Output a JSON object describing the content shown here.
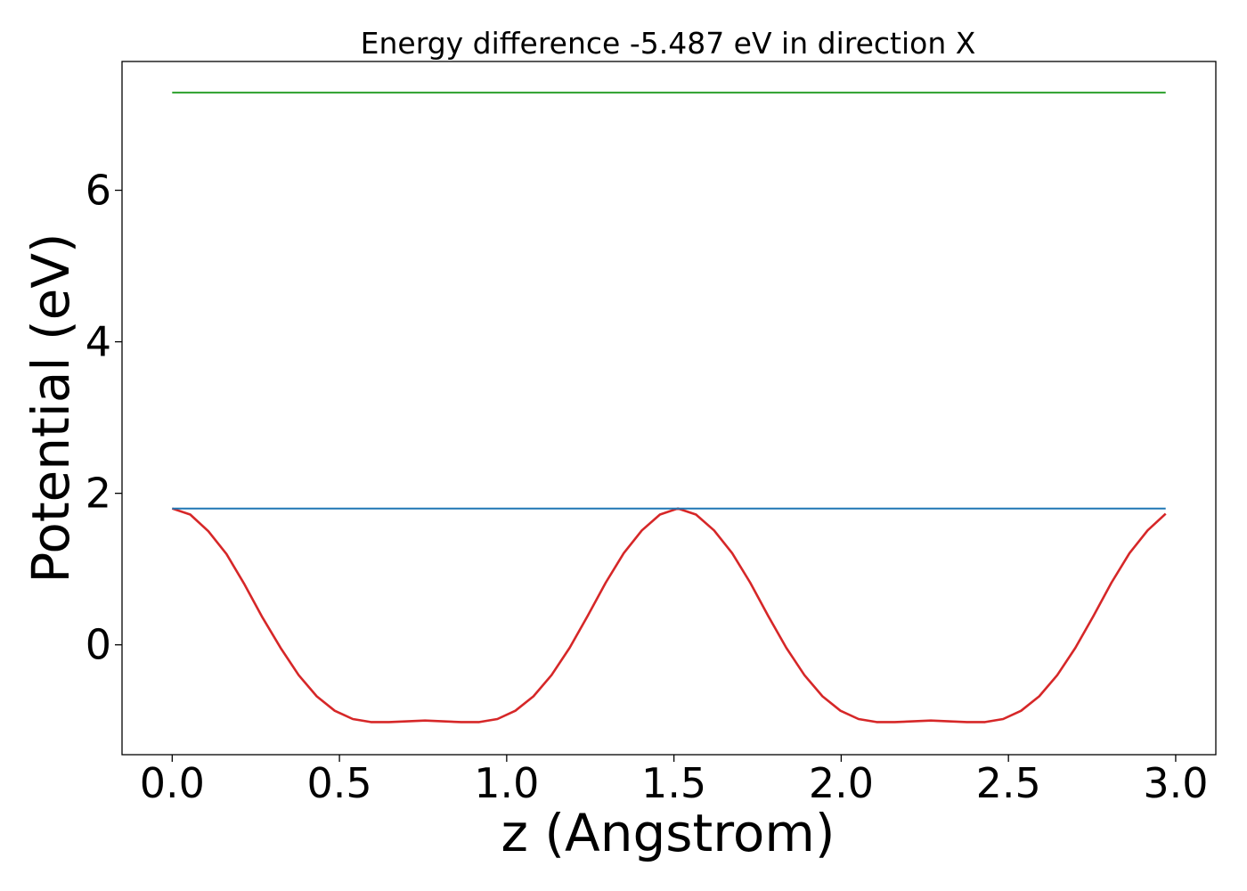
{
  "chart_data": {
    "type": "line",
    "title": "Energy difference -5.487 eV in direction X",
    "xlabel": "z (Angstrom)",
    "ylabel": "Potential (eV)",
    "xlim": [
      -0.15,
      3.12
    ],
    "ylim": [
      -1.45,
      7.7
    ],
    "xticks": [
      "0.0",
      "0.5",
      "1.0",
      "1.5",
      "2.0",
      "2.5",
      "3.0"
    ],
    "yticks": [
      "0",
      "2",
      "4",
      "6"
    ],
    "grid": false,
    "series": [
      {
        "color": "#d62728",
        "x": [
          0.0,
          0.054,
          0.108,
          0.162,
          0.216,
          0.27,
          0.324,
          0.378,
          0.432,
          0.486,
          0.54,
          0.594,
          0.648,
          0.702,
          0.756,
          0.81,
          0.864,
          0.918,
          0.972,
          1.026,
          1.08,
          1.134,
          1.188,
          1.242,
          1.296,
          1.35,
          1.404,
          1.458,
          1.512,
          1.566,
          1.62,
          1.674,
          1.728,
          1.782,
          1.836,
          1.89,
          1.944,
          1.998,
          2.052,
          2.106,
          2.16,
          2.214,
          2.268,
          2.322,
          2.376,
          2.43,
          2.484,
          2.538,
          2.592,
          2.646,
          2.7,
          2.754,
          2.808,
          2.862,
          2.916,
          2.97
        ],
        "y": [
          1.8,
          1.72,
          1.5,
          1.2,
          0.8,
          0.36,
          -0.04,
          -0.4,
          -0.68,
          -0.87,
          -0.98,
          -1.02,
          -1.02,
          -1.01,
          -1.0,
          -1.01,
          -1.02,
          -1.02,
          -0.98,
          -0.87,
          -0.68,
          -0.4,
          -0.04,
          0.38,
          0.82,
          1.21,
          1.51,
          1.72,
          1.8,
          1.72,
          1.51,
          1.21,
          0.82,
          0.38,
          -0.04,
          -0.4,
          -0.68,
          -0.87,
          -0.98,
          -1.02,
          -1.02,
          -1.01,
          -1.0,
          -1.01,
          -1.02,
          -1.02,
          -0.98,
          -0.87,
          -0.68,
          -0.4,
          -0.04,
          0.38,
          0.82,
          1.21,
          1.51,
          1.73
        ]
      },
      {
        "color": "#1f77b4",
        "x": [
          0.0,
          2.97
        ],
        "y": [
          1.8,
          1.8
        ]
      },
      {
        "color": "#2ca02c",
        "x": [
          0.0,
          2.97
        ],
        "y": [
          7.29,
          7.29
        ]
      }
    ]
  }
}
